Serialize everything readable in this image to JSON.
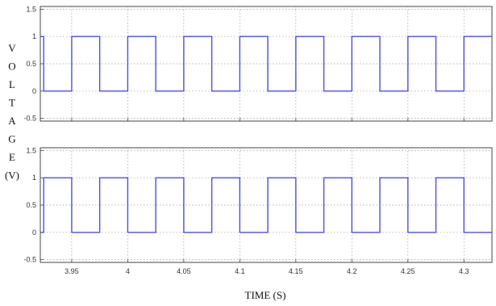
{
  "chart_data": [
    {
      "type": "line",
      "title": "",
      "xlabel": "",
      "ylabel": "VOLTAGE (V)",
      "ylabel_glyphs": [
        "V",
        "O",
        "L",
        "T",
        "A",
        "G",
        "E",
        "(V)"
      ],
      "xlim": [
        3.922,
        4.325
      ],
      "ylim": [
        -0.55,
        1.55
      ],
      "yticks": [
        -0.5,
        0,
        0.5,
        1,
        1.5
      ],
      "ytick_labels": [
        "-0.5",
        "0",
        "0.5",
        "1",
        "1.5"
      ],
      "xticks": [
        3.95,
        4.0,
        4.05,
        4.1,
        4.15,
        4.2,
        4.25,
        4.3
      ],
      "xtick_labels": [],
      "grid": true,
      "line_color": "#4a4aff",
      "series": [
        {
          "x": [
            3.922,
            3.925,
            3.925,
            3.95,
            3.95,
            3.975,
            3.975,
            4.0,
            4.0,
            4.025,
            4.025,
            4.05,
            4.05,
            4.075,
            4.075,
            4.1,
            4.1,
            4.125,
            4.125,
            4.15,
            4.15,
            4.175,
            4.175,
            4.2,
            4.2,
            4.225,
            4.225,
            4.25,
            4.25,
            4.275,
            4.275,
            4.3,
            4.3,
            4.325
          ],
          "y": [
            1,
            1,
            0,
            0,
            1,
            1,
            0,
            0,
            1,
            1,
            0,
            0,
            1,
            1,
            0,
            0,
            1,
            1,
            0,
            0,
            1,
            1,
            0,
            0,
            1,
            1,
            0,
            0,
            1,
            1,
            0,
            0,
            1,
            1
          ]
        }
      ]
    },
    {
      "type": "line",
      "title": "",
      "xlabel": "TIME (S)",
      "ylabel": "",
      "xlim": [
        3.922,
        4.325
      ],
      "ylim": [
        -0.55,
        1.55
      ],
      "yticks": [
        -0.5,
        0,
        0.5,
        1,
        1.5
      ],
      "ytick_labels": [
        "-0.5",
        "0",
        "0.5",
        "1",
        "1.5"
      ],
      "xticks": [
        3.95,
        4.0,
        4.05,
        4.1,
        4.15,
        4.2,
        4.25,
        4.3
      ],
      "xtick_labels": [
        "3.95",
        "4",
        "4.05",
        "4.1",
        "4.15",
        "4.2",
        "4.25",
        "4.3"
      ],
      "grid": true,
      "line_color": "#4a4aff",
      "series": [
        {
          "x": [
            3.922,
            3.925,
            3.925,
            3.95,
            3.95,
            3.975,
            3.975,
            4.0,
            4.0,
            4.025,
            4.025,
            4.05,
            4.05,
            4.075,
            4.075,
            4.1,
            4.1,
            4.125,
            4.125,
            4.15,
            4.15,
            4.175,
            4.175,
            4.2,
            4.2,
            4.225,
            4.225,
            4.25,
            4.25,
            4.275,
            4.275,
            4.3,
            4.3,
            4.325
          ],
          "y": [
            0,
            0,
            1,
            1,
            0,
            0,
            1,
            1,
            0,
            0,
            1,
            1,
            0,
            0,
            1,
            1,
            0,
            0,
            1,
            1,
            0,
            0,
            1,
            1,
            0,
            0,
            1,
            1,
            0,
            0,
            1,
            1,
            0,
            0
          ]
        }
      ]
    }
  ]
}
